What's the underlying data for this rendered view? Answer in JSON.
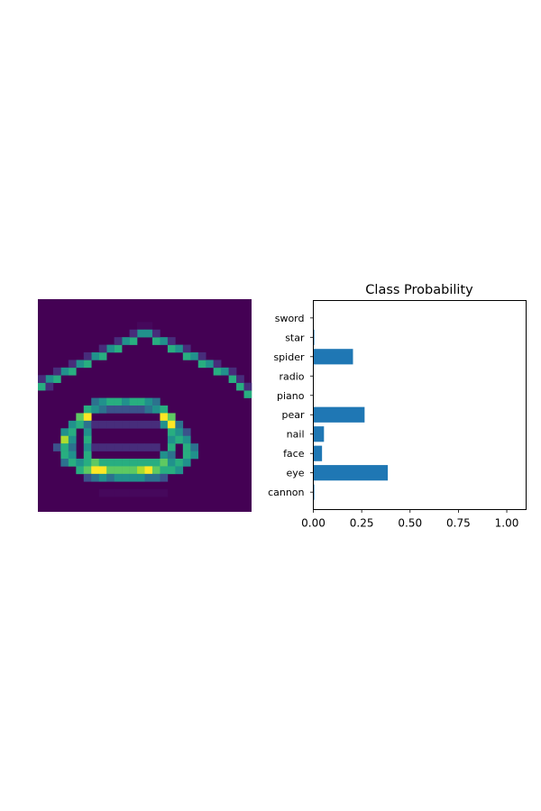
{
  "image_panel": {
    "colormap": "viridis",
    "background_color": "#440154"
  },
  "chart_data": {
    "type": "bar",
    "orientation": "horizontal",
    "title": "Class Probability",
    "xlabel": "",
    "ylabel": "",
    "categories": [
      "cannon",
      "eye",
      "face",
      "nail",
      "pear",
      "piano",
      "radio",
      "spider",
      "star",
      "sword"
    ],
    "values": [
      0.005,
      0.385,
      0.045,
      0.055,
      0.265,
      0.0,
      0.0,
      0.205,
      0.005,
      0.0
    ],
    "xlim": [
      0,
      1.1
    ],
    "xticks": [
      0.0,
      0.25,
      0.5,
      0.75,
      1.0
    ],
    "xtick_labels": [
      "0.00",
      "0.25",
      "0.50",
      "0.75",
      "1.00"
    ],
    "bar_color": "#1f77b4",
    "grid": false
  }
}
